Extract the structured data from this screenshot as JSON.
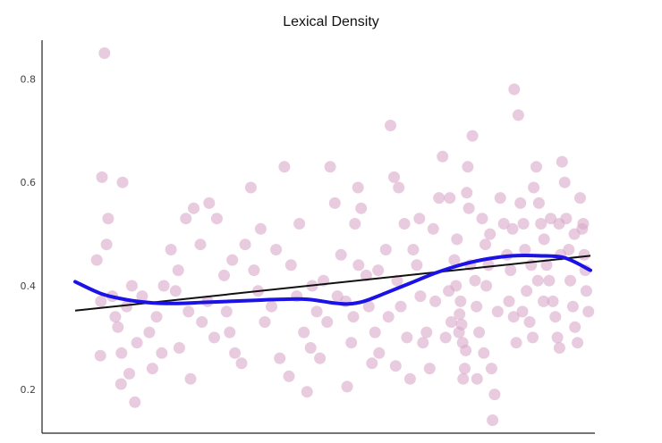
{
  "chart_data": {
    "type": "scatter",
    "title": "Lexical Density",
    "xlabel": "",
    "ylabel": "",
    "ylim": [
      0.115,
      0.875
    ],
    "xlim": [
      0,
      100
    ],
    "y_ticks": [
      "0.2",
      "0.4",
      "0.6",
      "0.8"
    ],
    "grid": false,
    "legend": "none",
    "points": [
      [
        5.7,
        0.85
      ],
      [
        5.2,
        0.61
      ],
      [
        4.2,
        0.45
      ],
      [
        5.0,
        0.37
      ],
      [
        4.9,
        0.265
      ],
      [
        9.2,
        0.6
      ],
      [
        6.4,
        0.53
      ],
      [
        6.1,
        0.48
      ],
      [
        7.2,
        0.38
      ],
      [
        7.8,
        0.34
      ],
      [
        8.3,
        0.32
      ],
      [
        10.0,
        0.36
      ],
      [
        9.0,
        0.27
      ],
      [
        10.5,
        0.23
      ],
      [
        11.6,
        0.175
      ],
      [
        8.9,
        0.21
      ],
      [
        13.0,
        0.38
      ],
      [
        14.4,
        0.31
      ],
      [
        15.8,
        0.34
      ],
      [
        17.2,
        0.4
      ],
      [
        18.6,
        0.47
      ],
      [
        20.0,
        0.43
      ],
      [
        21.5,
        0.53
      ],
      [
        23.0,
        0.55
      ],
      [
        24.3,
        0.48
      ],
      [
        25.7,
        0.37
      ],
      [
        16.8,
        0.27
      ],
      [
        20.2,
        0.28
      ],
      [
        22.4,
        0.22
      ],
      [
        24.6,
        0.33
      ],
      [
        27.0,
        0.3
      ],
      [
        27.5,
        0.53
      ],
      [
        28.9,
        0.42
      ],
      [
        30.0,
        0.31
      ],
      [
        31.0,
        0.27
      ],
      [
        32.3,
        0.25
      ],
      [
        33.0,
        0.48
      ],
      [
        34.1,
        0.59
      ],
      [
        35.5,
        0.39
      ],
      [
        36.8,
        0.33
      ],
      [
        38.1,
        0.36
      ],
      [
        39.7,
        0.26
      ],
      [
        40.6,
        0.63
      ],
      [
        41.9,
        0.44
      ],
      [
        43.0,
        0.38
      ],
      [
        44.4,
        0.31
      ],
      [
        45.7,
        0.28
      ],
      [
        46.9,
        0.35
      ],
      [
        48.2,
        0.41
      ],
      [
        49.5,
        0.63
      ],
      [
        50.4,
        0.56
      ],
      [
        51.6,
        0.46
      ],
      [
        52.5,
        0.37
      ],
      [
        53.6,
        0.29
      ],
      [
        54.3,
        0.52
      ],
      [
        54.9,
        0.59
      ],
      [
        55.5,
        0.55
      ],
      [
        56.5,
        0.42
      ],
      [
        57.0,
        0.36
      ],
      [
        58.2,
        0.31
      ],
      [
        59.0,
        0.27
      ],
      [
        60.3,
        0.47
      ],
      [
        61.2,
        0.71
      ],
      [
        61.9,
        0.61
      ],
      [
        62.5,
        0.41
      ],
      [
        63.2,
        0.36
      ],
      [
        64.4,
        0.3
      ],
      [
        65.0,
        0.22
      ],
      [
        65.6,
        0.47
      ],
      [
        66.3,
        0.44
      ],
      [
        67.0,
        0.38
      ],
      [
        67.5,
        0.29
      ],
      [
        68.2,
        0.31
      ],
      [
        68.8,
        0.24
      ],
      [
        69.5,
        0.51
      ],
      [
        70.6,
        0.57
      ],
      [
        71.3,
        0.65
      ],
      [
        72.5,
        0.39
      ],
      [
        73.0,
        0.33
      ],
      [
        73.6,
        0.45
      ],
      [
        73.9,
        0.4
      ],
      [
        74.5,
        0.31
      ],
      [
        74.6,
        0.345
      ],
      [
        74.8,
        0.37
      ],
      [
        75.0,
        0.325
      ],
      [
        75.2,
        0.29
      ],
      [
        75.6,
        0.24
      ],
      [
        75.3,
        0.22
      ],
      [
        75.8,
        0.275
      ],
      [
        76.0,
        0.58
      ],
      [
        76.2,
        0.63
      ],
      [
        76.4,
        0.55
      ],
      [
        77.1,
        0.69
      ],
      [
        77.6,
        0.41
      ],
      [
        77.9,
        0.36
      ],
      [
        78.4,
        0.31
      ],
      [
        79.0,
        0.53
      ],
      [
        79.6,
        0.48
      ],
      [
        80.2,
        0.44
      ],
      [
        80.8,
        0.24
      ],
      [
        81.0,
        0.14
      ],
      [
        81.4,
        0.19
      ],
      [
        79.3,
        0.27
      ],
      [
        78.0,
        0.22
      ],
      [
        82.5,
        0.57
      ],
      [
        83.2,
        0.52
      ],
      [
        83.8,
        0.46
      ],
      [
        84.5,
        0.43
      ],
      [
        84.2,
        0.37
      ],
      [
        85.1,
        0.34
      ],
      [
        85.6,
        0.29
      ],
      [
        85.2,
        0.78
      ],
      [
        86.0,
        0.73
      ],
      [
        86.4,
        0.56
      ],
      [
        87.0,
        0.52
      ],
      [
        87.3,
        0.47
      ],
      [
        87.6,
        0.39
      ],
      [
        88.2,
        0.33
      ],
      [
        88.8,
        0.3
      ],
      [
        89.0,
        0.59
      ],
      [
        89.5,
        0.63
      ],
      [
        90.0,
        0.56
      ],
      [
        90.4,
        0.52
      ],
      [
        91.0,
        0.49
      ],
      [
        91.5,
        0.44
      ],
      [
        92.0,
        0.41
      ],
      [
        92.7,
        0.37
      ],
      [
        93.2,
        0.34
      ],
      [
        93.6,
        0.3
      ],
      [
        94.0,
        0.28
      ],
      [
        94.5,
        0.64
      ],
      [
        95.0,
        0.6
      ],
      [
        95.3,
        0.53
      ],
      [
        95.8,
        0.47
      ],
      [
        96.1,
        0.41
      ],
      [
        96.6,
        0.36
      ],
      [
        97.0,
        0.32
      ],
      [
        97.5,
        0.29
      ],
      [
        98.0,
        0.57
      ],
      [
        98.4,
        0.51
      ],
      [
        98.8,
        0.46
      ],
      [
        99.2,
        0.39
      ],
      [
        99.6,
        0.35
      ],
      [
        41.5,
        0.225
      ],
      [
        45.0,
        0.195
      ],
      [
        52.8,
        0.205
      ],
      [
        57.6,
        0.25
      ],
      [
        62.2,
        0.245
      ],
      [
        55.0,
        0.44
      ],
      [
        46.0,
        0.4
      ],
      [
        36.0,
        0.51
      ],
      [
        26.0,
        0.56
      ],
      [
        19.5,
        0.39
      ],
      [
        15.0,
        0.24
      ],
      [
        12.0,
        0.29
      ],
      [
        30.5,
        0.45
      ],
      [
        43.5,
        0.52
      ],
      [
        48.9,
        0.33
      ],
      [
        58.8,
        0.43
      ],
      [
        63.9,
        0.52
      ],
      [
        69.9,
        0.37
      ],
      [
        71.9,
        0.3
      ],
      [
        74.1,
        0.49
      ],
      [
        76.7,
        0.44
      ],
      [
        79.8,
        0.4
      ],
      [
        82.0,
        0.35
      ],
      [
        86.8,
        0.35
      ],
      [
        88.5,
        0.44
      ],
      [
        90.9,
        0.37
      ],
      [
        92.3,
        0.53
      ],
      [
        94.2,
        0.46
      ],
      [
        96.9,
        0.5
      ],
      [
        99.0,
        0.43
      ],
      [
        60.8,
        0.34
      ],
      [
        54.0,
        0.34
      ],
      [
        50.9,
        0.38
      ],
      [
        47.5,
        0.26
      ],
      [
        39.0,
        0.47
      ],
      [
        34.7,
        0.43
      ],
      [
        29.4,
        0.35
      ],
      [
        22.0,
        0.35
      ],
      [
        11.0,
        0.4
      ],
      [
        62.8,
        0.59
      ],
      [
        66.8,
        0.53
      ],
      [
        72.7,
        0.57
      ],
      [
        80.5,
        0.5
      ],
      [
        84.9,
        0.51
      ],
      [
        89.8,
        0.41
      ],
      [
        93.9,
        0.52
      ],
      [
        98.6,
        0.52
      ]
    ],
    "linear_fit": [
      [
        0,
        0.352
      ],
      [
        100,
        0.458
      ]
    ],
    "smooth_curve": [
      [
        0,
        0.408
      ],
      [
        5,
        0.385
      ],
      [
        10,
        0.373
      ],
      [
        15,
        0.367
      ],
      [
        20,
        0.366
      ],
      [
        25,
        0.368
      ],
      [
        30,
        0.37
      ],
      [
        35,
        0.372
      ],
      [
        40,
        0.374
      ],
      [
        45,
        0.374
      ],
      [
        50,
        0.367
      ],
      [
        53,
        0.365
      ],
      [
        56,
        0.37
      ],
      [
        60,
        0.385
      ],
      [
        65,
        0.405
      ],
      [
        70,
        0.425
      ],
      [
        75,
        0.441
      ],
      [
        80,
        0.452
      ],
      [
        85,
        0.458
      ],
      [
        90,
        0.458
      ],
      [
        95,
        0.454
      ],
      [
        100,
        0.43
      ]
    ],
    "colors": {
      "points": "#d9a8c8",
      "smooth_curve": "#1a12e6",
      "linear_fit": "#111111",
      "axis": "#222222"
    }
  }
}
